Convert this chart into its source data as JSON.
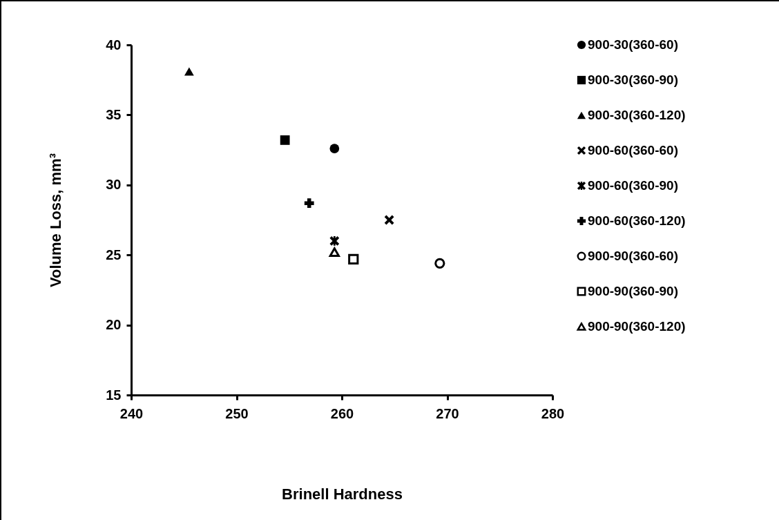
{
  "chart_data": {
    "type": "scatter",
    "xlabel": "Brinell Hardness",
    "ylabel": "Volume Loss, mm³",
    "xlim": [
      240,
      280
    ],
    "xticks": [
      240,
      250,
      260,
      270,
      280
    ],
    "ylim": [
      15,
      40
    ],
    "yticks": [
      15,
      20,
      25,
      30,
      35,
      40
    ],
    "grid": false,
    "legend": "right",
    "series": [
      {
        "name": "900-30(360-60)",
        "color": "#000000",
        "x": [
          259.3
        ],
        "values": [
          32.6
        ]
      },
      {
        "name": "900-30(360-90)",
        "color": "#000000",
        "x": [
          254.6
        ],
        "values": [
          33.2
        ]
      },
      {
        "name": "900-30(360-120)",
        "color": "#000000",
        "x": [
          245.5
        ],
        "values": [
          38.1
        ]
      },
      {
        "name": "900-60(360-60)",
        "color": "#000000",
        "x": [
          264.5
        ],
        "values": [
          27.5
        ]
      },
      {
        "name": "900-60(360-90)",
        "color": "#000000",
        "x": [
          259.3
        ],
        "values": [
          26.0
        ]
      },
      {
        "name": "900-60(360-120)",
        "color": "#000000",
        "x": [
          256.9
        ],
        "values": [
          28.7
        ]
      },
      {
        "name": "900-90(360-60)",
        "color": "#000000",
        "x": [
          269.3
        ],
        "values": [
          24.4
        ]
      },
      {
        "name": "900-90(360-90)",
        "color": "#000000",
        "x": [
          261.1
        ],
        "values": [
          24.7
        ]
      },
      {
        "name": "900-90(360-120)",
        "color": "#000000",
        "x": [
          259.3
        ],
        "values": [
          25.2
        ]
      }
    ]
  }
}
